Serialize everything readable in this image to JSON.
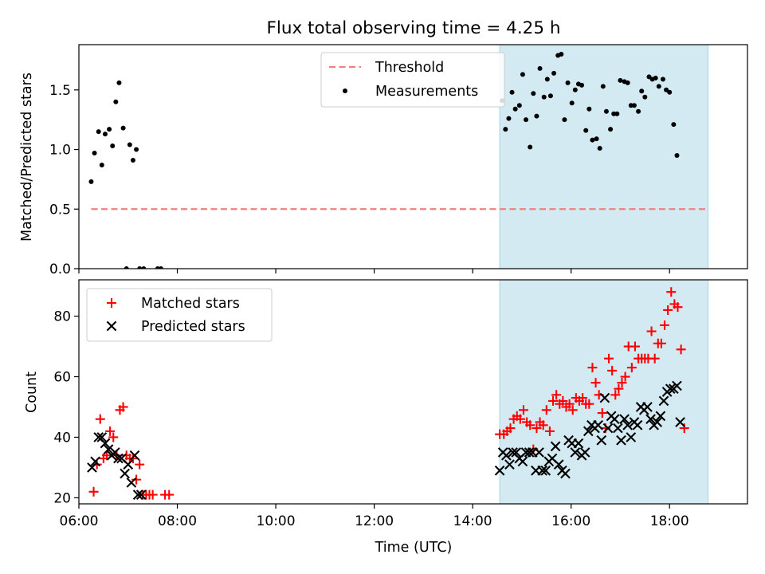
{
  "chart_data": [
    {
      "type": "scatter",
      "title": "Flux total observing time = 4.25 h",
      "ylabel": "Matched/Predicted stars",
      "xlabel": "",
      "xlim": [
        "06:00",
        "19:35"
      ],
      "ylim": [
        0,
        1.88
      ],
      "yticks": [
        "0.0",
        "0.5",
        "1.0",
        "1.5"
      ],
      "legend": "top-center",
      "shaded_interval": [
        "14:33",
        "18:47"
      ],
      "shade_color": "#d3eaf2",
      "threshold": {
        "name": "Threshold",
        "value": 0.5,
        "x": [
          "06:15",
          "18:45"
        ],
        "color": "#f08080"
      },
      "series": [
        {
          "name": "Measurements",
          "color": "#000000",
          "points": [
            [
              "06:15",
              0.73
            ],
            [
              "06:19",
              0.97
            ],
            [
              "06:24",
              1.15
            ],
            [
              "06:28",
              0.87
            ],
            [
              "06:32",
              1.13
            ],
            [
              "06:37",
              1.17
            ],
            [
              "06:41",
              1.03
            ],
            [
              "06:45",
              1.4
            ],
            [
              "06:49",
              1.56
            ],
            [
              "06:54",
              1.18
            ],
            [
              "06:58",
              0.0
            ],
            [
              "07:02",
              1.04
            ],
            [
              "07:06",
              0.91
            ],
            [
              "07:10",
              1.0
            ],
            [
              "07:14",
              0.0
            ],
            [
              "07:19",
              0.0
            ],
            [
              "07:36",
              0.0
            ],
            [
              "07:40",
              0.0
            ],
            [
              "14:36",
              1.41
            ],
            [
              "14:40",
              1.17
            ],
            [
              "14:44",
              1.26
            ],
            [
              "14:48",
              1.48
            ],
            [
              "14:52",
              1.34
            ],
            [
              "14:57",
              1.37
            ],
            [
              "15:01",
              1.63
            ],
            [
              "15:05",
              1.25
            ],
            [
              "15:10",
              1.02
            ],
            [
              "15:14",
              1.47
            ],
            [
              "15:18",
              1.28
            ],
            [
              "15:22",
              1.68
            ],
            [
              "15:27",
              1.44
            ],
            [
              "15:31",
              1.59
            ],
            [
              "15:35",
              1.45
            ],
            [
              "15:39",
              1.64
            ],
            [
              "15:44",
              1.79
            ],
            [
              "15:48",
              1.8
            ],
            [
              "15:52",
              1.25
            ],
            [
              "15:56",
              1.56
            ],
            [
              "16:01",
              1.39
            ],
            [
              "16:05",
              1.5
            ],
            [
              "16:09",
              1.55
            ],
            [
              "16:13",
              1.54
            ],
            [
              "16:18",
              1.16
            ],
            [
              "16:22",
              1.34
            ],
            [
              "16:26",
              1.08
            ],
            [
              "16:31",
              1.09
            ],
            [
              "16:35",
              1.01
            ],
            [
              "16:39",
              1.53
            ],
            [
              "16:43",
              1.32
            ],
            [
              "16:48",
              1.17
            ],
            [
              "16:52",
              1.3
            ],
            [
              "16:56",
              1.3
            ],
            [
              "17:00",
              1.58
            ],
            [
              "17:05",
              1.57
            ],
            [
              "17:09",
              1.56
            ],
            [
              "17:13",
              1.37
            ],
            [
              "17:17",
              1.37
            ],
            [
              "17:22",
              1.32
            ],
            [
              "17:26",
              1.49
            ],
            [
              "17:30",
              1.44
            ],
            [
              "17:35",
              1.61
            ],
            [
              "17:39",
              1.59
            ],
            [
              "17:43",
              1.6
            ],
            [
              "17:47",
              1.53
            ],
            [
              "17:52",
              1.59
            ],
            [
              "17:56",
              1.5
            ],
            [
              "18:00",
              1.48
            ],
            [
              "18:05",
              1.21
            ],
            [
              "18:09",
              0.95
            ]
          ]
        }
      ]
    },
    {
      "type": "scatter",
      "title": "",
      "ylabel": "Count",
      "xlabel": "Time (UTC)",
      "xlim": [
        "06:00",
        "19:35"
      ],
      "xticks": [
        "06:00",
        "08:00",
        "10:00",
        "12:00",
        "14:00",
        "16:00",
        "18:00"
      ],
      "ylim": [
        18,
        92
      ],
      "yticks": [
        "20",
        "40",
        "60",
        "80"
      ],
      "legend": "top-left",
      "shaded_interval": [
        "14:33",
        "18:47"
      ],
      "shade_color": "#d3eaf2",
      "series": [
        {
          "name": "Matched stars",
          "marker": "plus",
          "color": "#ff0000",
          "points": [
            [
              "06:18",
              22
            ],
            [
              "06:22",
              31
            ],
            [
              "06:26",
              46
            ],
            [
              "06:30",
              33
            ],
            [
              "06:34",
              34
            ],
            [
              "06:38",
              42
            ],
            [
              "06:42",
              40
            ],
            [
              "06:46",
              34
            ],
            [
              "06:50",
              49
            ],
            [
              "06:54",
              50
            ],
            [
              "06:58",
              34
            ],
            [
              "07:02",
              33
            ],
            [
              "07:06",
              33
            ],
            [
              "07:10",
              26
            ],
            [
              "07:14",
              31
            ],
            [
              "07:18",
              21
            ],
            [
              "07:22",
              21
            ],
            [
              "07:26",
              21
            ],
            [
              "07:30",
              21
            ],
            [
              "07:45",
              21
            ],
            [
              "07:50",
              21
            ],
            [
              "14:33",
              41
            ],
            [
              "14:38",
              41
            ],
            [
              "14:42",
              42
            ],
            [
              "14:46",
              43
            ],
            [
              "14:50",
              46
            ],
            [
              "14:54",
              47
            ],
            [
              "14:58",
              46
            ],
            [
              "15:02",
              49
            ],
            [
              "15:06",
              45
            ],
            [
              "15:10",
              44
            ],
            [
              "15:14",
              36
            ],
            [
              "15:18",
              43
            ],
            [
              "15:22",
              45
            ],
            [
              "15:26",
              44
            ],
            [
              "15:30",
              49
            ],
            [
              "15:34",
              42
            ],
            [
              "15:38",
              52
            ],
            [
              "15:42",
              54
            ],
            [
              "15:46",
              51
            ],
            [
              "15:50",
              52
            ],
            [
              "15:54",
              50
            ],
            [
              "15:58",
              51
            ],
            [
              "16:02",
              49
            ],
            [
              "16:06",
              53
            ],
            [
              "16:10",
              52
            ],
            [
              "16:14",
              53
            ],
            [
              "16:18",
              51
            ],
            [
              "16:22",
              51
            ],
            [
              "16:26",
              63
            ],
            [
              "16:30",
              58
            ],
            [
              "16:34",
              54
            ],
            [
              "16:38",
              48
            ],
            [
              "16:42",
              43
            ],
            [
              "16:46",
              66
            ],
            [
              "16:50",
              62
            ],
            [
              "16:54",
              54
            ],
            [
              "16:58",
              56
            ],
            [
              "17:02",
              58
            ],
            [
              "17:06",
              60
            ],
            [
              "17:10",
              70
            ],
            [
              "17:14",
              63
            ],
            [
              "17:18",
              70
            ],
            [
              "17:22",
              66
            ],
            [
              "17:26",
              66
            ],
            [
              "17:30",
              66
            ],
            [
              "17:34",
              66
            ],
            [
              "17:38",
              75
            ],
            [
              "17:42",
              66
            ],
            [
              "17:46",
              71
            ],
            [
              "17:50",
              71
            ],
            [
              "17:54",
              77
            ],
            [
              "17:58",
              82
            ],
            [
              "18:02",
              88
            ],
            [
              "18:06",
              84
            ],
            [
              "18:10",
              83
            ],
            [
              "18:14",
              69
            ],
            [
              "18:18",
              43
            ]
          ]
        },
        {
          "name": "Predicted stars",
          "marker": "x",
          "color": "#000000",
          "points": [
            [
              "06:16",
              30
            ],
            [
              "06:20",
              32
            ],
            [
              "06:24",
              40
            ],
            [
              "06:28",
              40
            ],
            [
              "06:32",
              38
            ],
            [
              "06:36",
              36
            ],
            [
              "06:40",
              34
            ],
            [
              "06:44",
              35
            ],
            [
              "06:48",
              33
            ],
            [
              "06:52",
              33
            ],
            [
              "06:56",
              28
            ],
            [
              "07:00",
              31
            ],
            [
              "07:04",
              25
            ],
            [
              "07:08",
              34
            ],
            [
              "07:12",
              21
            ],
            [
              "07:16",
              21
            ],
            [
              "14:33",
              29
            ],
            [
              "14:37",
              35
            ],
            [
              "14:41",
              34
            ],
            [
              "14:45",
              31
            ],
            [
              "14:49",
              35
            ],
            [
              "14:53",
              35
            ],
            [
              "14:57",
              33
            ],
            [
              "15:01",
              32
            ],
            [
              "15:05",
              35
            ],
            [
              "15:09",
              35
            ],
            [
              "15:13",
              35
            ],
            [
              "15:17",
              29
            ],
            [
              "15:21",
              35
            ],
            [
              "15:25",
              29
            ],
            [
              "15:29",
              29
            ],
            [
              "15:33",
              32
            ],
            [
              "15:37",
              33
            ],
            [
              "15:41",
              37
            ],
            [
              "15:45",
              31
            ],
            [
              "15:49",
              29
            ],
            [
              "15:53",
              28
            ],
            [
              "15:57",
              39
            ],
            [
              "16:01",
              38
            ],
            [
              "16:05",
              35
            ],
            [
              "16:09",
              38
            ],
            [
              "16:13",
              34
            ],
            [
              "16:17",
              35
            ],
            [
              "16:21",
              42
            ],
            [
              "16:25",
              44
            ],
            [
              "16:29",
              43
            ],
            [
              "16:33",
              44
            ],
            [
              "16:37",
              39
            ],
            [
              "16:41",
              53
            ],
            [
              "16:45",
              43
            ],
            [
              "16:49",
              47
            ],
            [
              "16:53",
              46
            ],
            [
              "16:57",
              43
            ],
            [
              "17:01",
              39
            ],
            [
              "17:05",
              46
            ],
            [
              "17:09",
              44
            ],
            [
              "17:13",
              40
            ],
            [
              "17:17",
              45
            ],
            [
              "17:21",
              44
            ],
            [
              "17:25",
              50
            ],
            [
              "17:29",
              49
            ],
            [
              "17:33",
              50
            ],
            [
              "17:37",
              46
            ],
            [
              "17:41",
              44
            ],
            [
              "17:45",
              45
            ],
            [
              "17:49",
              47
            ],
            [
              "17:53",
              52
            ],
            [
              "17:57",
              55
            ],
            [
              "18:01",
              56
            ],
            [
              "18:05",
              56
            ],
            [
              "18:09",
              57
            ],
            [
              "18:13",
              45
            ]
          ]
        }
      ]
    }
  ]
}
